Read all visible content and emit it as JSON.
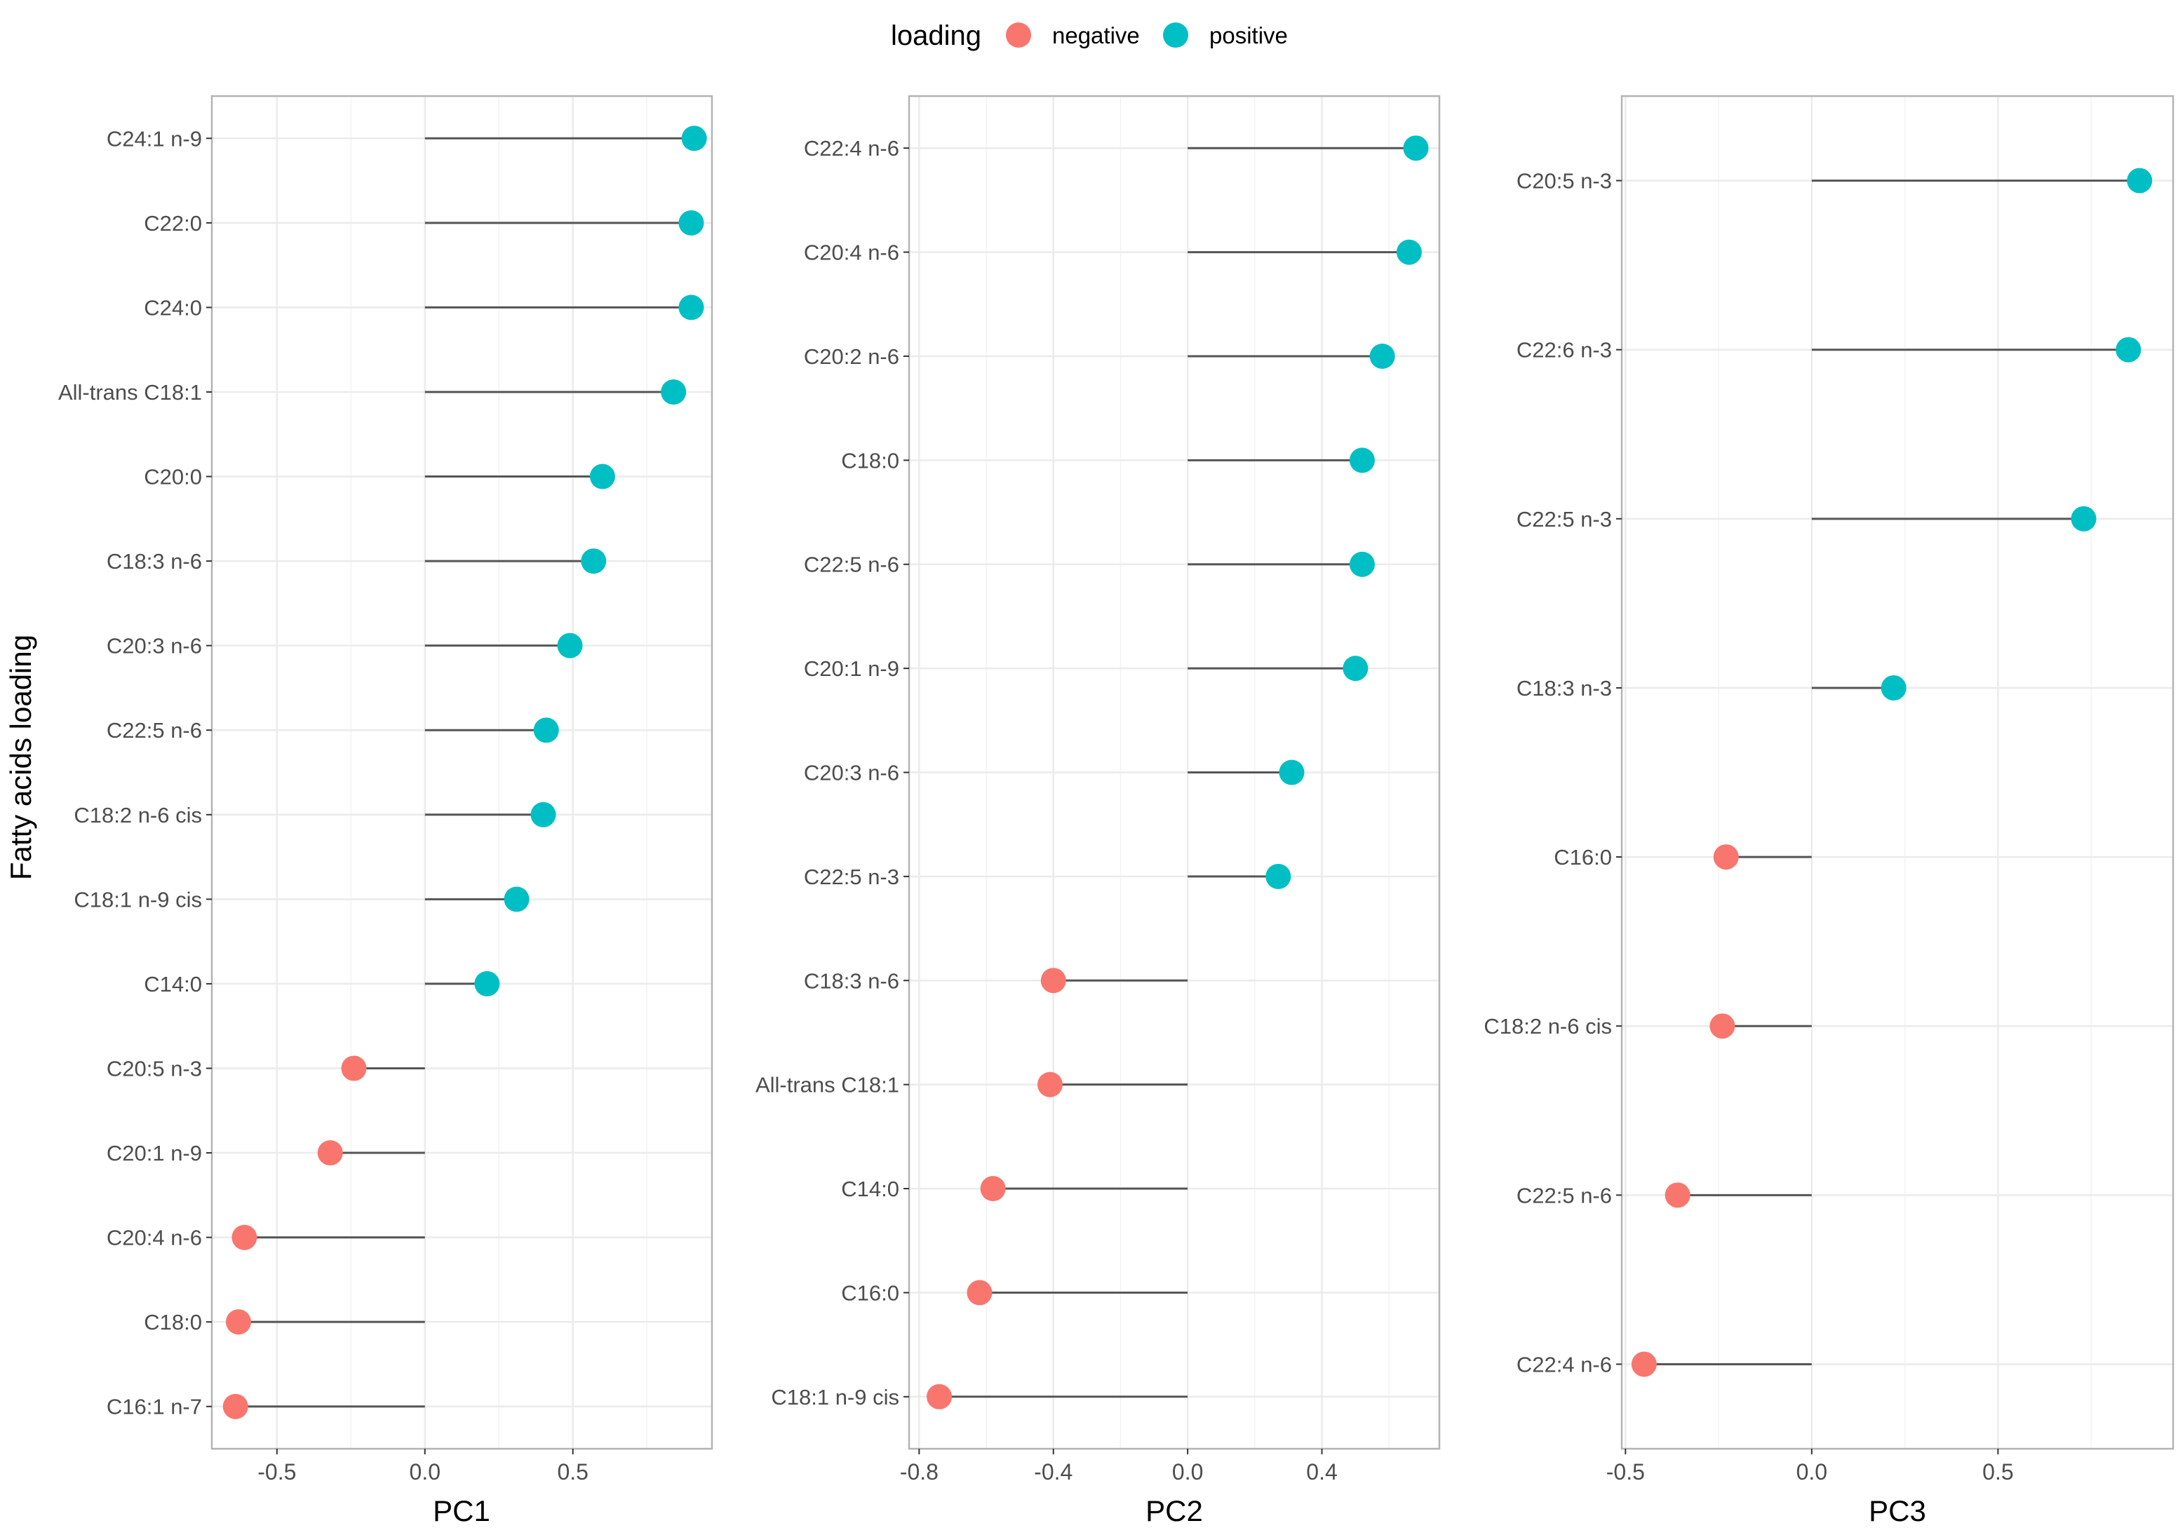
{
  "colors": {
    "negative": "#F8766D",
    "positive": "#00BFC4",
    "segment": "#555555",
    "grid": "#ebebeb",
    "border": "#b3b3b3"
  },
  "legend": {
    "title": "loading",
    "negative_label": "negative",
    "positive_label": "positive"
  },
  "y_axis_title": "Fatty acids loading",
  "chart_data": [
    {
      "type": "lollipop",
      "xlabel": "PC1",
      "xlim": [
        -0.72,
        0.97
      ],
      "ticks": [
        -0.5,
        0.0,
        0.5
      ],
      "tick_labels": [
        "-0.5",
        "0.0",
        "0.5"
      ],
      "categories": [
        "C24:1 n-9",
        "C22:0",
        "C24:0",
        "All-trans C18:1",
        "C20:0",
        "C18:3 n-6",
        "C20:3 n-6",
        "C22:5 n-6",
        "C18:2 n-6 cis",
        "C18:1 n-9 cis",
        "C14:0",
        "C20:5 n-3",
        "C20:1 n-9",
        "C20:4 n-6",
        "C18:0",
        "C16:1 n-7"
      ],
      "values": [
        0.91,
        0.9,
        0.9,
        0.84,
        0.6,
        0.57,
        0.49,
        0.41,
        0.4,
        0.31,
        0.21,
        -0.24,
        -0.32,
        -0.61,
        -0.63,
        -0.64
      ]
    },
    {
      "type": "lollipop",
      "xlabel": "PC2",
      "xlim": [
        -0.83,
        0.75
      ],
      "ticks": [
        -0.8,
        -0.4,
        0.0,
        0.4
      ],
      "tick_labels": [
        "-0.8",
        "-0.4",
        "0.0",
        "0.4"
      ],
      "categories": [
        "C22:4 n-6",
        "C20:4 n-6",
        "C20:2 n-6",
        "C18:0",
        "C22:5 n-6",
        "C20:1 n-9",
        "C20:3 n-6",
        "C22:5 n-3",
        "C18:3 n-6",
        "All-trans C18:1",
        "C14:0",
        "C16:0",
        "C18:1 n-9 cis"
      ],
      "values": [
        0.68,
        0.66,
        0.58,
        0.52,
        0.52,
        0.5,
        0.31,
        0.27,
        -0.4,
        -0.41,
        -0.58,
        -0.62,
        -0.74
      ]
    },
    {
      "type": "lollipop",
      "xlabel": "PC3",
      "xlim": [
        -0.51,
        0.97
      ],
      "ticks": [
        -0.5,
        0.0,
        0.5
      ],
      "tick_labels": [
        "-0.5",
        "0.0",
        "0.5"
      ],
      "categories": [
        "C20:5 n-3",
        "C22:6 n-3",
        "C22:5 n-3",
        "C18:3 n-3",
        "C16:0",
        "C18:2 n-6 cis",
        "C22:5 n-6",
        "C22:4 n-6"
      ],
      "values": [
        0.88,
        0.85,
        0.73,
        0.22,
        -0.23,
        -0.24,
        -0.36,
        -0.45
      ]
    }
  ]
}
